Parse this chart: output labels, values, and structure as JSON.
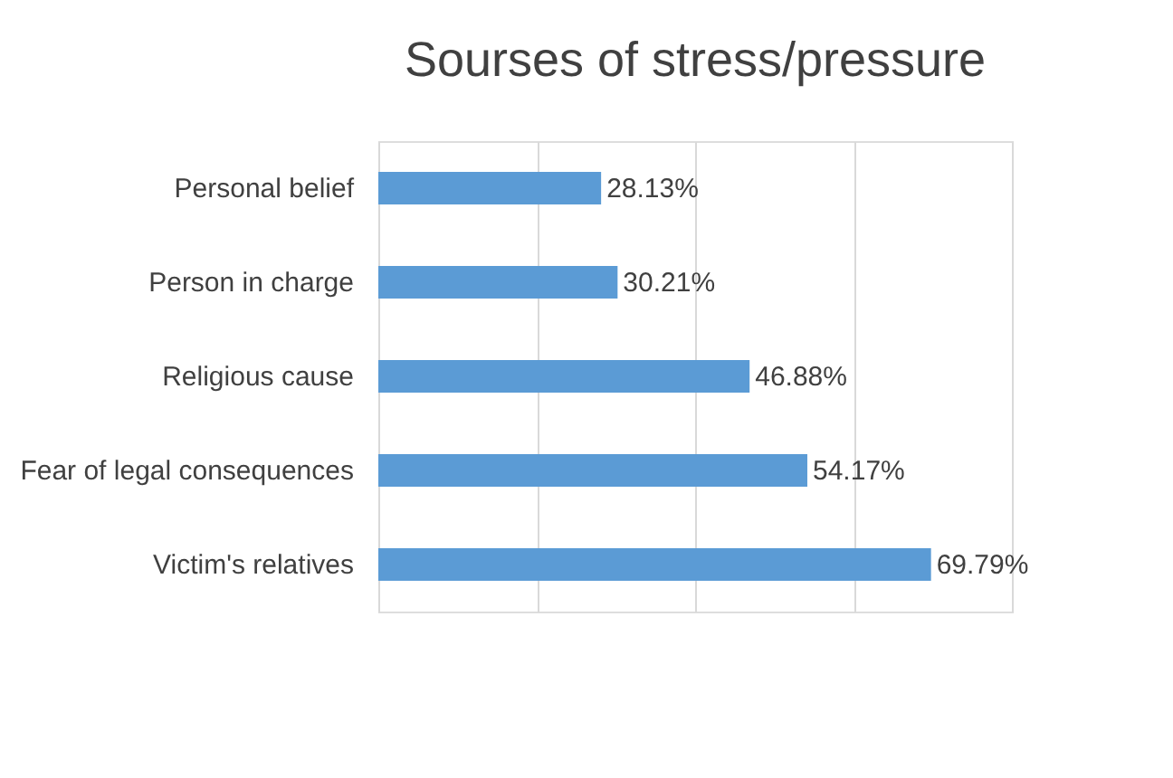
{
  "chart_data": {
    "type": "bar",
    "orientation": "horizontal",
    "title": "Sourses of stress/pressure",
    "categories": [
      "Personal belief",
      "Person in charge",
      "Religious cause",
      "Fear of legal consequences",
      "Victim's relatives"
    ],
    "values": [
      28.13,
      30.21,
      46.88,
      54.17,
      69.79
    ],
    "value_labels": [
      "28.13%",
      "30.21%",
      "46.88%",
      "54.17%",
      "69.79%"
    ],
    "color": "#5b9bd5",
    "xlim": [
      0,
      80
    ],
    "xticks": [
      {
        "value": 0,
        "label": null
      },
      {
        "value": 20,
        "label": null
      },
      {
        "value": 40,
        "label": null
      },
      {
        "value": 60,
        "label": null
      },
      {
        "value": 80,
        "label": null
      }
    ],
    "grid": "x",
    "tick_labels": "y"
  }
}
